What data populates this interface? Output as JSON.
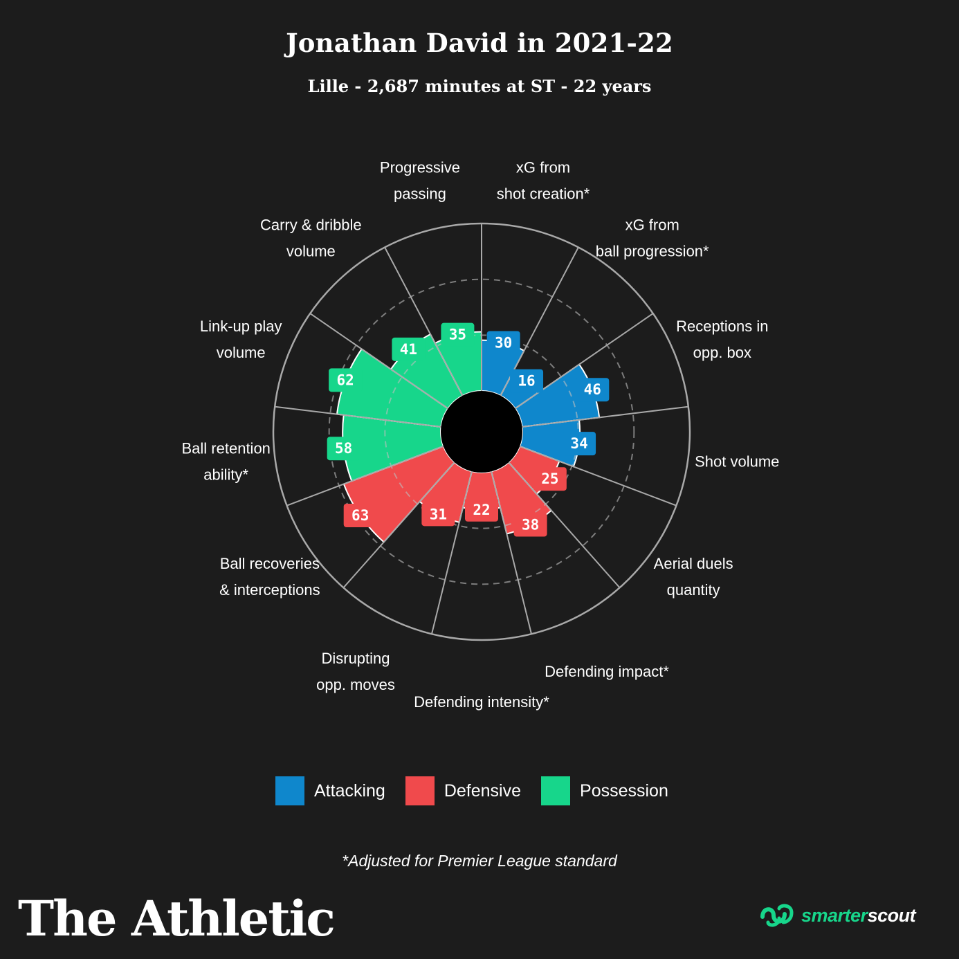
{
  "title": "Jonathan David in 2021-22",
  "subtitle": "Lille - 2,687 minutes at ST - 22 years",
  "chart_data": {
    "type": "radial-bar",
    "title": "Jonathan David in 2021-22",
    "subtitle": "Lille - 2,687 minutes at ST - 22 years",
    "scale": [
      0,
      99
    ],
    "grid": true,
    "colors": {
      "Attacking": "#0f87cc",
      "Defensive": "#f04a4c",
      "Possession": "#17d68b"
    },
    "series": [
      {
        "category": "Attacking",
        "label": [
          "xG from",
          "shot creation*"
        ],
        "value": 30
      },
      {
        "category": "Attacking",
        "label": [
          "xG from",
          "ball progression*"
        ],
        "value": 16
      },
      {
        "category": "Attacking",
        "label": [
          "Receptions in",
          "opp. box"
        ],
        "value": 46
      },
      {
        "category": "Attacking",
        "label": [
          "Shot volume"
        ],
        "value": 34
      },
      {
        "category": "Defensive",
        "label": [
          "Aerial duels",
          "quantity"
        ],
        "value": 25
      },
      {
        "category": "Defensive",
        "label": [
          "Defending impact*"
        ],
        "value": 38
      },
      {
        "category": "Defensive",
        "label": [
          "Defending intensity*"
        ],
        "value": 22
      },
      {
        "category": "Defensive",
        "label": [
          "Disrupting",
          "opp. moves"
        ],
        "value": 31
      },
      {
        "category": "Defensive",
        "label": [
          "Ball recoveries",
          "& interceptions"
        ],
        "value": 63
      },
      {
        "category": "Possession",
        "label": [
          "Ball retention",
          "ability*"
        ],
        "value": 58
      },
      {
        "category": "Possession",
        "label": [
          "Link-up play",
          "volume"
        ],
        "value": 62
      },
      {
        "category": "Possession",
        "label": [
          "Carry & dribble",
          "volume"
        ],
        "value": 41
      },
      {
        "category": "Possession",
        "label": [
          "Progressive",
          "passing"
        ],
        "value": 35
      }
    ]
  },
  "legend": [
    {
      "label": "Attacking",
      "color": "#0f87cc"
    },
    {
      "label": "Defensive",
      "color": "#f04a4c"
    },
    {
      "label": "Possession",
      "color": "#17d68b"
    }
  ],
  "footnote": "*Adjusted for Premier League standard",
  "branding": {
    "publisher": "The Athletic",
    "partner_a": "smarter",
    "partner_b": "scout"
  }
}
